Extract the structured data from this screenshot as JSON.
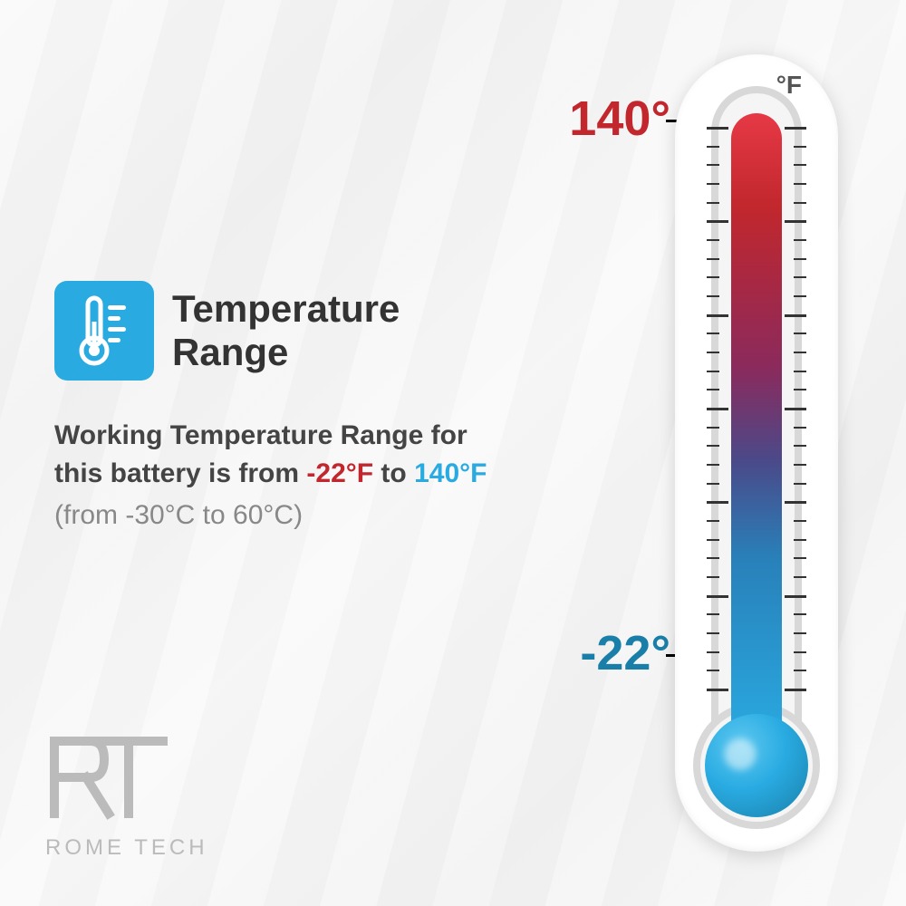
{
  "title": "Temperature\nRange",
  "description": {
    "prefix": "Working Temperature Range for this battery is from ",
    "low": "-22°F",
    "mid": " to ",
    "high": "140°F"
  },
  "celsius_note": "(from -30°C to 60°C)",
  "thermometer": {
    "unit": "°F",
    "high_label": "140°",
    "low_label": "-22°",
    "high_color": "#c1272d",
    "low_color": "#1a7fa8",
    "tick_count": 30,
    "gradient_top": "#e63946",
    "gradient_bottom": "#29abe2"
  },
  "icon": {
    "bg_color": "#29abe2",
    "fg_color": "#ffffff"
  },
  "logo": {
    "mark": "RT",
    "text": "ROME TECH",
    "color": "#bbbbbb"
  },
  "background_color": "#f5f5f5"
}
